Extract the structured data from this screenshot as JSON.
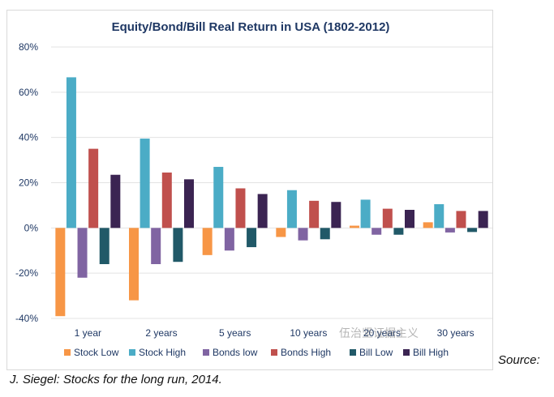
{
  "chart_data": {
    "type": "bar",
    "title": "Equity/Bond/Bill Real Return in USA (1802-2012)",
    "categories": [
      "1 year",
      "2 years",
      "5 years",
      "10 years",
      "20 years",
      "30 years"
    ],
    "ylim": [
      -40,
      80
    ],
    "yticks": [
      "80%",
      "60%",
      "40%",
      "20%",
      "0%",
      "-20%",
      "-40%"
    ],
    "ytick_values": [
      80,
      60,
      40,
      20,
      0,
      -20,
      -40
    ],
    "grid": true,
    "legend_position": "bottom",
    "series": [
      {
        "name": "Stock Low",
        "color": "#f79646",
        "values": [
          -39,
          -32,
          -12,
          -4,
          1,
          2.5
        ]
      },
      {
        "name": "Stock High",
        "color": "#4bacc6",
        "values": [
          66.6,
          39.5,
          27,
          16.7,
          12.5,
          10.5
        ]
      },
      {
        "name": "Bonds low",
        "color": "#8064a2",
        "values": [
          -22,
          -16,
          -10,
          -5.5,
          -3,
          -2
        ]
      },
      {
        "name": "Bonds High",
        "color": "#c0504d",
        "values": [
          35,
          24.5,
          17.5,
          12,
          8.5,
          7.5
        ]
      },
      {
        "name": "Bill Low",
        "color": "#215968",
        "values": [
          -16,
          -15,
          -8.5,
          -5,
          -3,
          -1.8
        ]
      },
      {
        "name": "Bill High",
        "color": "#3b2452",
        "values": [
          23.5,
          21.5,
          15,
          11.5,
          8,
          7.5
        ]
      }
    ]
  },
  "caption": {
    "source": "Source:",
    "citation": "J. Siegel: Stocks for the long run, 2014."
  },
  "watermark": "伍治坚证据主义"
}
